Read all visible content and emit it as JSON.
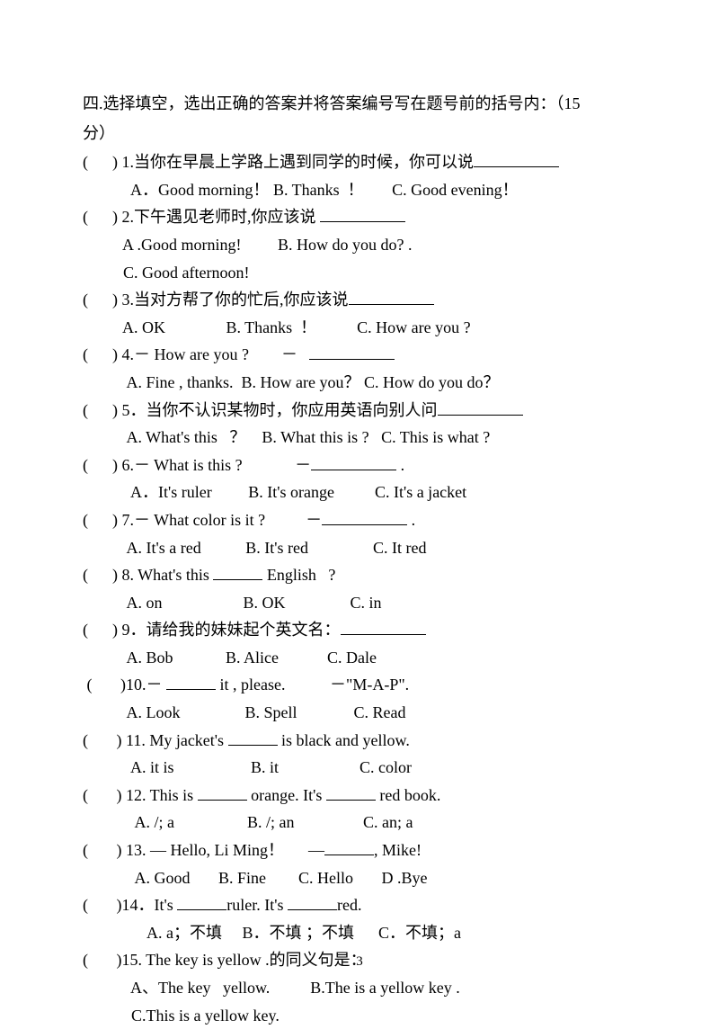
{
  "section": {
    "title_line1": "四.选择填空，选出正确的答案并将答案编号写在题号前的括号内：（15",
    "title_line2": "分）"
  },
  "questions": [
    {
      "stem": "(      ) 1.当你在早晨上学路上遇到同学的时候，你可以说",
      "blank_after": true,
      "options": [
        "            A．Good morning！ B. Thanks  ！       C. Good evening！"
      ]
    },
    {
      "stem": "(      ) 2.下午遇见老师时,你应该说 ",
      "blank_after": true,
      "options": [
        "          A .Good morning!         B. How do you do? .",
        "          C. Good afternoon!"
      ]
    },
    {
      "stem": "(      ) 3.当对方帮了你的忙后,你应该说",
      "blank_after": true,
      "options": [
        "          A. OK               B. Thanks  ！          C. How are you ?"
      ]
    },
    {
      "stem": "(      ) 4.－ How are you ?        －   ",
      "blank_after": true,
      "options": [
        "           A. Fine , thanks.  B. How are you？ C. How do you do？"
      ]
    },
    {
      "stem": "(      ) 5．当你不认识某物时，你应用英语向别人问",
      "blank_after": true,
      "options": [
        "           A. What's this   ？    B. What this is ?   C. This is what ?"
      ]
    },
    {
      "stem": "(      ) 6.－ What is this ?             －",
      "blank_after": true,
      "tail": " .",
      "options": [
        "            A．It's ruler         B. It's orange          C. It's a jacket"
      ]
    },
    {
      "stem": "(      ) 7.－ What color is it ?          －",
      "blank_after": true,
      "tail": " .",
      "options": [
        "           A. It's a red           B. It's red                C. It red"
      ]
    },
    {
      "stem": "(      ) 8. What's this ",
      "mid_blank": true,
      "stem2": " English   ?",
      "options": [
        "           A. on                    B. OK                C. in"
      ]
    },
    {
      "stem": "(      ) 9．请给我的妹妹起个英文名：",
      "blank_after": true,
      "options": [
        "           A. Bob             B. Alice            C. Dale"
      ]
    },
    {
      "stem": " (       )10.－ ",
      "mid_blank": true,
      "stem2": " it , please.           －\"M-A-P\".",
      "options": [
        "           A. Look                B. Spell              C. Read"
      ]
    },
    {
      "stem": "(       ) 11. My jacket's ",
      "mid_blank": true,
      "stem2": " is black and yellow.",
      "options": [
        "            A. it is                   B. it                    C. color"
      ]
    },
    {
      "stem": "(       ) 12. This is ",
      "mid_blank": true,
      "stem2": " orange. It's ",
      "mid_blank2": true,
      "stem3": " red book.",
      "options": [
        "             A. /; a                  B. /; an                 C. an; a"
      ]
    },
    {
      "stem": "(       ) 13. — Hello, Li Ming！      —",
      "mid_blank": true,
      "stem2": ", Mike!",
      "options": [
        "             A. Good       B. Fine        C. Hello       D .Bye"
      ]
    },
    {
      "stem": "(       )14．It's ",
      "mid_blank": true,
      "stem2": "ruler. It's ",
      "mid_blank2": true,
      "stem3": "red.",
      "options": [
        "                A. a；不填     B．不填 ；不填      C．不填；a"
      ]
    },
    {
      "stem": "(       )15. The key is yellow .的同义句是：",
      "options": [
        "            A、The key   yellow.          B.The is a yellow key .",
        "            C.This is a yellow key."
      ]
    }
  ],
  "page_number": "3"
}
